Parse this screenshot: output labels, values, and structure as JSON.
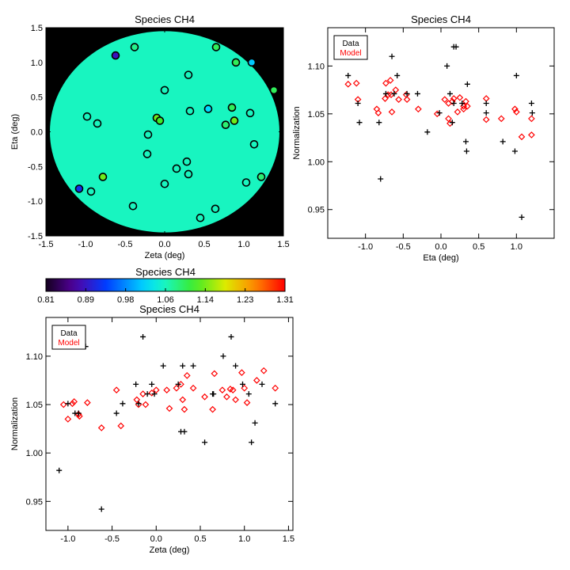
{
  "chart_data": [
    {
      "type": "scatter",
      "title": "Species CH4",
      "xlabel": "Zeta (deg)",
      "ylabel": "Eta (deg)",
      "xlim": [
        -1.5,
        1.5
      ],
      "ylim": [
        -1.5,
        1.5
      ],
      "xticks": [
        "-1.5",
        "-1.0",
        "-0.5",
        "0.0",
        "0.5",
        "1.0",
        "1.5"
      ],
      "yticks": [
        "-1.5",
        "-1.0",
        "-0.5",
        "0.0",
        "0.5",
        "1.0",
        "1.5"
      ],
      "background_color": "#000000",
      "field_color": "#18f5c0",
      "points": [
        {
          "x": -0.62,
          "y": 1.1,
          "v": 0.89
        },
        {
          "x": -0.38,
          "y": 1.22,
          "v": 1.08
        },
        {
          "x": 0.65,
          "y": 1.22,
          "v": 1.1
        },
        {
          "x": 0.9,
          "y": 1.0,
          "v": 1.1
        },
        {
          "x": 1.1,
          "y": 1.0,
          "v": 1.01
        },
        {
          "x": 0.3,
          "y": 0.82,
          "v": 1.06
        },
        {
          "x": 0.0,
          "y": 0.6,
          "v": 1.06
        },
        {
          "x": 1.38,
          "y": 0.6,
          "v": 1.1
        },
        {
          "x": 0.85,
          "y": 0.35,
          "v": 1.1
        },
        {
          "x": 0.55,
          "y": 0.33,
          "v": 1.02
        },
        {
          "x": 0.32,
          "y": 0.3,
          "v": 1.06
        },
        {
          "x": 1.08,
          "y": 0.27,
          "v": 1.06
        },
        {
          "x": -0.98,
          "y": 0.22,
          "v": 1.06
        },
        {
          "x": -0.1,
          "y": 0.2,
          "v": 1.14
        },
        {
          "x": -0.06,
          "y": 0.16,
          "v": 1.12
        },
        {
          "x": 0.88,
          "y": 0.16,
          "v": 1.14
        },
        {
          "x": -0.85,
          "y": 0.12,
          "v": 1.06
        },
        {
          "x": 0.77,
          "y": 0.1,
          "v": 1.09
        },
        {
          "x": -0.21,
          "y": -0.04,
          "v": 1.06
        },
        {
          "x": 1.13,
          "y": -0.18,
          "v": 1.06
        },
        {
          "x": -0.22,
          "y": -0.32,
          "v": 1.06
        },
        {
          "x": 0.28,
          "y": -0.43,
          "v": 1.06
        },
        {
          "x": 0.15,
          "y": -0.53,
          "v": 1.06
        },
        {
          "x": 0.3,
          "y": -0.61,
          "v": 1.06
        },
        {
          "x": -0.78,
          "y": -0.65,
          "v": 1.14
        },
        {
          "x": 1.22,
          "y": -0.65,
          "v": 1.09
        },
        {
          "x": 1.03,
          "y": -0.73,
          "v": 1.06
        },
        {
          "x": 0.0,
          "y": -0.75,
          "v": 1.06
        },
        {
          "x": -1.08,
          "y": -0.82,
          "v": 0.92
        },
        {
          "x": -0.93,
          "y": -0.86,
          "v": 1.06
        },
        {
          "x": -0.4,
          "y": -1.07,
          "v": 1.06
        },
        {
          "x": 0.64,
          "y": -1.11,
          "v": 1.06
        },
        {
          "x": 0.45,
          "y": -1.24,
          "v": 1.06
        }
      ]
    },
    {
      "type": "colorbar",
      "title": "Species CH4",
      "ticks": [
        "0.81",
        "0.89",
        "0.98",
        "1.06",
        "1.14",
        "1.23",
        "1.31"
      ],
      "range": [
        0.81,
        1.31
      ]
    },
    {
      "type": "scatter",
      "title": "Species CH4",
      "xlabel": "Eta (deg)",
      "ylabel": "Normalization",
      "xlim": [
        -1.5,
        1.5
      ],
      "ylim": [
        0.92,
        1.14
      ],
      "xticks": [
        "-1.0",
        "-0.5",
        "0.0",
        "0.5",
        "1.0"
      ],
      "yticks": [
        "0.95",
        "1.00",
        "1.05",
        "1.10"
      ],
      "legend": [
        "Data",
        "Model"
      ],
      "legend_position": "top-left",
      "series": [
        {
          "name": "Data",
          "marker": "plus",
          "color": "#000000",
          "points": [
            [
              -1.23,
              1.09
            ],
            [
              -1.1,
              1.061
            ],
            [
              -1.08,
              1.041
            ],
            [
              -0.82,
              1.041
            ],
            [
              -0.8,
              0.982
            ],
            [
              -0.73,
              1.071
            ],
            [
              -0.65,
              1.11
            ],
            [
              -0.62,
              1.071
            ],
            [
              -0.58,
              1.09
            ],
            [
              -0.45,
              1.071
            ],
            [
              -0.31,
              1.071
            ],
            [
              -0.18,
              1.031
            ],
            [
              -0.02,
              1.051
            ],
            [
              0.08,
              1.1
            ],
            [
              0.12,
              1.071
            ],
            [
              0.15,
              1.041
            ],
            [
              0.17,
              1.061
            ],
            [
              0.17,
              1.12
            ],
            [
              0.2,
              1.12
            ],
            [
              0.28,
              1.061
            ],
            [
              0.33,
              1.021
            ],
            [
              0.34,
              1.011
            ],
            [
              0.35,
              1.081
            ],
            [
              0.6,
              1.061
            ],
            [
              0.6,
              1.051
            ],
            [
              0.82,
              1.021
            ],
            [
              0.98,
              1.011
            ],
            [
              1.0,
              1.09
            ],
            [
              1.07,
              0.942
            ],
            [
              1.2,
              1.061
            ],
            [
              1.21,
              1.051
            ]
          ]
        },
        {
          "name": "Model",
          "marker": "diamond",
          "color": "#ff0000",
          "points": [
            [
              -1.23,
              1.081
            ],
            [
              -1.12,
              1.082
            ],
            [
              -1.1,
              1.065
            ],
            [
              -0.85,
              1.055
            ],
            [
              -0.83,
              1.051
            ],
            [
              -0.74,
              1.066
            ],
            [
              -0.73,
              1.082
            ],
            [
              -0.7,
              1.07
            ],
            [
              -0.67,
              1.085
            ],
            [
              -0.66,
              1.07
            ],
            [
              -0.65,
              1.052
            ],
            [
              -0.6,
              1.075
            ],
            [
              -0.56,
              1.065
            ],
            [
              -0.46,
              1.07
            ],
            [
              -0.45,
              1.065
            ],
            [
              -0.3,
              1.055
            ],
            [
              -0.05,
              1.05
            ],
            [
              0.05,
              1.065
            ],
            [
              0.1,
              1.045
            ],
            [
              0.1,
              1.061
            ],
            [
              0.12,
              1.04
            ],
            [
              0.15,
              1.063
            ],
            [
              0.17,
              1.066
            ],
            [
              0.22,
              1.052
            ],
            [
              0.25,
              1.067
            ],
            [
              0.3,
              1.055
            ],
            [
              0.3,
              1.058
            ],
            [
              0.33,
              1.063
            ],
            [
              0.35,
              1.058
            ],
            [
              0.6,
              1.066
            ],
            [
              0.6,
              1.044
            ],
            [
              0.8,
              1.045
            ],
            [
              0.98,
              1.055
            ],
            [
              1.0,
              1.052
            ],
            [
              1.07,
              1.026
            ],
            [
              1.2,
              1.045
            ],
            [
              1.2,
              1.028
            ]
          ]
        }
      ]
    },
    {
      "type": "scatter",
      "title": "Species CH4",
      "xlabel": "Zeta (deg)",
      "ylabel": "Normalization",
      "xlim": [
        -1.25,
        1.55
      ],
      "ylim": [
        0.92,
        1.14
      ],
      "xticks": [
        "-1.0",
        "-0.5",
        "0.0",
        "0.5",
        "1.0",
        "1.5"
      ],
      "yticks": [
        "0.95",
        "1.00",
        "1.05",
        "1.10"
      ],
      "legend": [
        "Data",
        "Model"
      ],
      "legend_position": "top-left",
      "series": [
        {
          "name": "Data",
          "marker": "plus",
          "color": "#000000",
          "points": [
            [
              -1.1,
              0.982
            ],
            [
              -1.0,
              1.051
            ],
            [
              -0.92,
              1.041
            ],
            [
              -0.88,
              1.041
            ],
            [
              -0.8,
              1.11
            ],
            [
              -0.62,
              0.942
            ],
            [
              -0.45,
              1.041
            ],
            [
              -0.38,
              1.051
            ],
            [
              -0.23,
              1.071
            ],
            [
              -0.2,
              1.051
            ],
            [
              -0.15,
              1.12
            ],
            [
              -0.1,
              1.061
            ],
            [
              -0.05,
              1.071
            ],
            [
              -0.02,
              1.061
            ],
            [
              0.08,
              1.09
            ],
            [
              0.25,
              1.071
            ],
            [
              0.28,
              1.022
            ],
            [
              0.3,
              1.09
            ],
            [
              0.32,
              1.022
            ],
            [
              0.42,
              1.09
            ],
            [
              0.55,
              1.011
            ],
            [
              0.64,
              1.061
            ],
            [
              0.65,
              1.061
            ],
            [
              0.76,
              1.1
            ],
            [
              0.85,
              1.12
            ],
            [
              0.9,
              1.09
            ],
            [
              0.98,
              1.071
            ],
            [
              1.05,
              1.061
            ],
            [
              1.08,
              1.011
            ],
            [
              1.12,
              1.031
            ],
            [
              1.2,
              1.071
            ],
            [
              1.35,
              1.051
            ]
          ]
        },
        {
          "name": "Model",
          "marker": "diamond",
          "color": "#ff0000",
          "points": [
            [
              -1.05,
              1.05
            ],
            [
              -1.0,
              1.035
            ],
            [
              -0.95,
              1.051
            ],
            [
              -0.93,
              1.053
            ],
            [
              -0.88,
              1.04
            ],
            [
              -0.87,
              1.038
            ],
            [
              -0.78,
              1.052
            ],
            [
              -0.62,
              1.026
            ],
            [
              -0.45,
              1.065
            ],
            [
              -0.4,
              1.028
            ],
            [
              -0.22,
              1.055
            ],
            [
              -0.2,
              1.05
            ],
            [
              -0.15,
              1.061
            ],
            [
              -0.12,
              1.05
            ],
            [
              -0.05,
              1.062
            ],
            [
              0.0,
              1.065
            ],
            [
              0.12,
              1.065
            ],
            [
              0.15,
              1.046
            ],
            [
              0.23,
              1.067
            ],
            [
              0.28,
              1.071
            ],
            [
              0.3,
              1.055
            ],
            [
              0.32,
              1.045
            ],
            [
              0.35,
              1.08
            ],
            [
              0.42,
              1.067
            ],
            [
              0.55,
              1.058
            ],
            [
              0.64,
              1.045
            ],
            [
              0.66,
              1.082
            ],
            [
              0.75,
              1.065
            ],
            [
              0.8,
              1.058
            ],
            [
              0.84,
              1.066
            ],
            [
              0.87,
              1.065
            ],
            [
              0.9,
              1.055
            ],
            [
              0.97,
              1.083
            ],
            [
              1.0,
              1.067
            ],
            [
              1.03,
              1.052
            ],
            [
              1.14,
              1.075
            ],
            [
              1.22,
              1.085
            ],
            [
              1.35,
              1.067
            ]
          ]
        }
      ]
    }
  ]
}
